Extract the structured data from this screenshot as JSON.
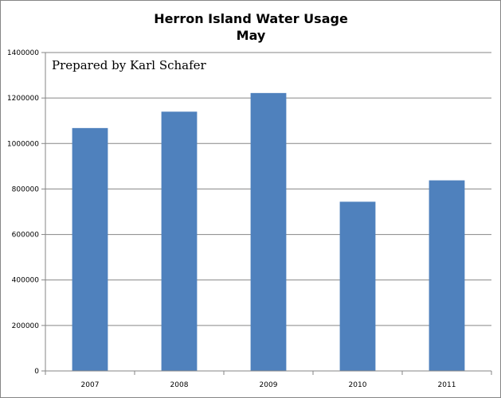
{
  "chart_data": {
    "type": "bar",
    "title": [
      "Herron Island Water Usage",
      "May"
    ],
    "annotation": "Prepared by Karl Schafer",
    "categories": [
      "2007",
      "2008",
      "2009",
      "2010",
      "2011"
    ],
    "values": [
      1068000,
      1140000,
      1222000,
      744000,
      838000
    ],
    "xlabel": "",
    "ylabel": "",
    "ylim": [
      0,
      1400000
    ],
    "yticks": [
      "0",
      "200000",
      "400000",
      "600000",
      "800000",
      "1000000",
      "1200000",
      "1400000"
    ],
    "grid": true,
    "legend": "none",
    "bar_color": "#4f81bd",
    "grid_color": "#868686"
  }
}
